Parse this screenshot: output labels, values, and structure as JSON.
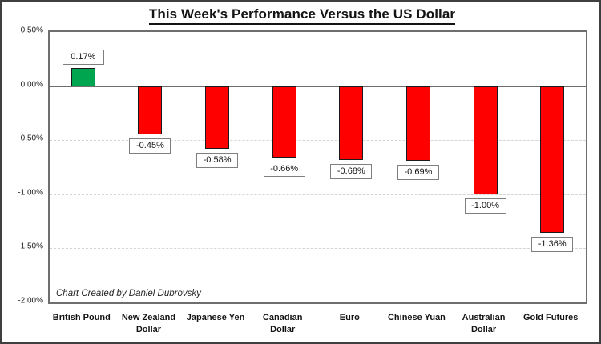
{
  "window": {
    "background": "#ffffff",
    "frame_color": "#3f3f3f"
  },
  "chart_data": {
    "type": "bar",
    "title": "This Week's Performance Versus the US Dollar",
    "categories": [
      "British Pound",
      "New Zealand Dollar",
      "Japanese Yen",
      "Canadian Dollar",
      "Euro",
      "Chinese Yuan",
      "Australian Dollar",
      "Gold Futures"
    ],
    "values": [
      0.17,
      -0.45,
      -0.58,
      -0.66,
      -0.68,
      -0.69,
      -1.0,
      -1.36
    ],
    "data_labels": [
      "0.17%",
      "-0.45%",
      "-0.58%",
      "-0.66%",
      "-0.68%",
      "-0.69%",
      "-1.00%",
      "-1.36%"
    ],
    "xlabel": "",
    "ylabel": "",
    "ylim": [
      -2.0,
      0.5
    ],
    "yticks": [
      0.5,
      0.0,
      -0.5,
      -1.0,
      -1.5,
      -2.0
    ],
    "ytick_labels": [
      "0.50%",
      "0.00%",
      "-0.50%",
      "-1.00%",
      "-1.50%",
      "-2.00%"
    ],
    "grid": "horizontal-dashed",
    "legend": "none",
    "annotation": "Chart Created by Daniel Dubrovsky",
    "colors": {
      "positive_bar": "#00A550",
      "negative_bar": "#FF0000",
      "bar_border": "#1A1A1A",
      "gridline": "#D4D4D4",
      "axis_line": "#6E6E6E",
      "label_box_border": "#7F7F7F",
      "text": "#141414"
    }
  }
}
